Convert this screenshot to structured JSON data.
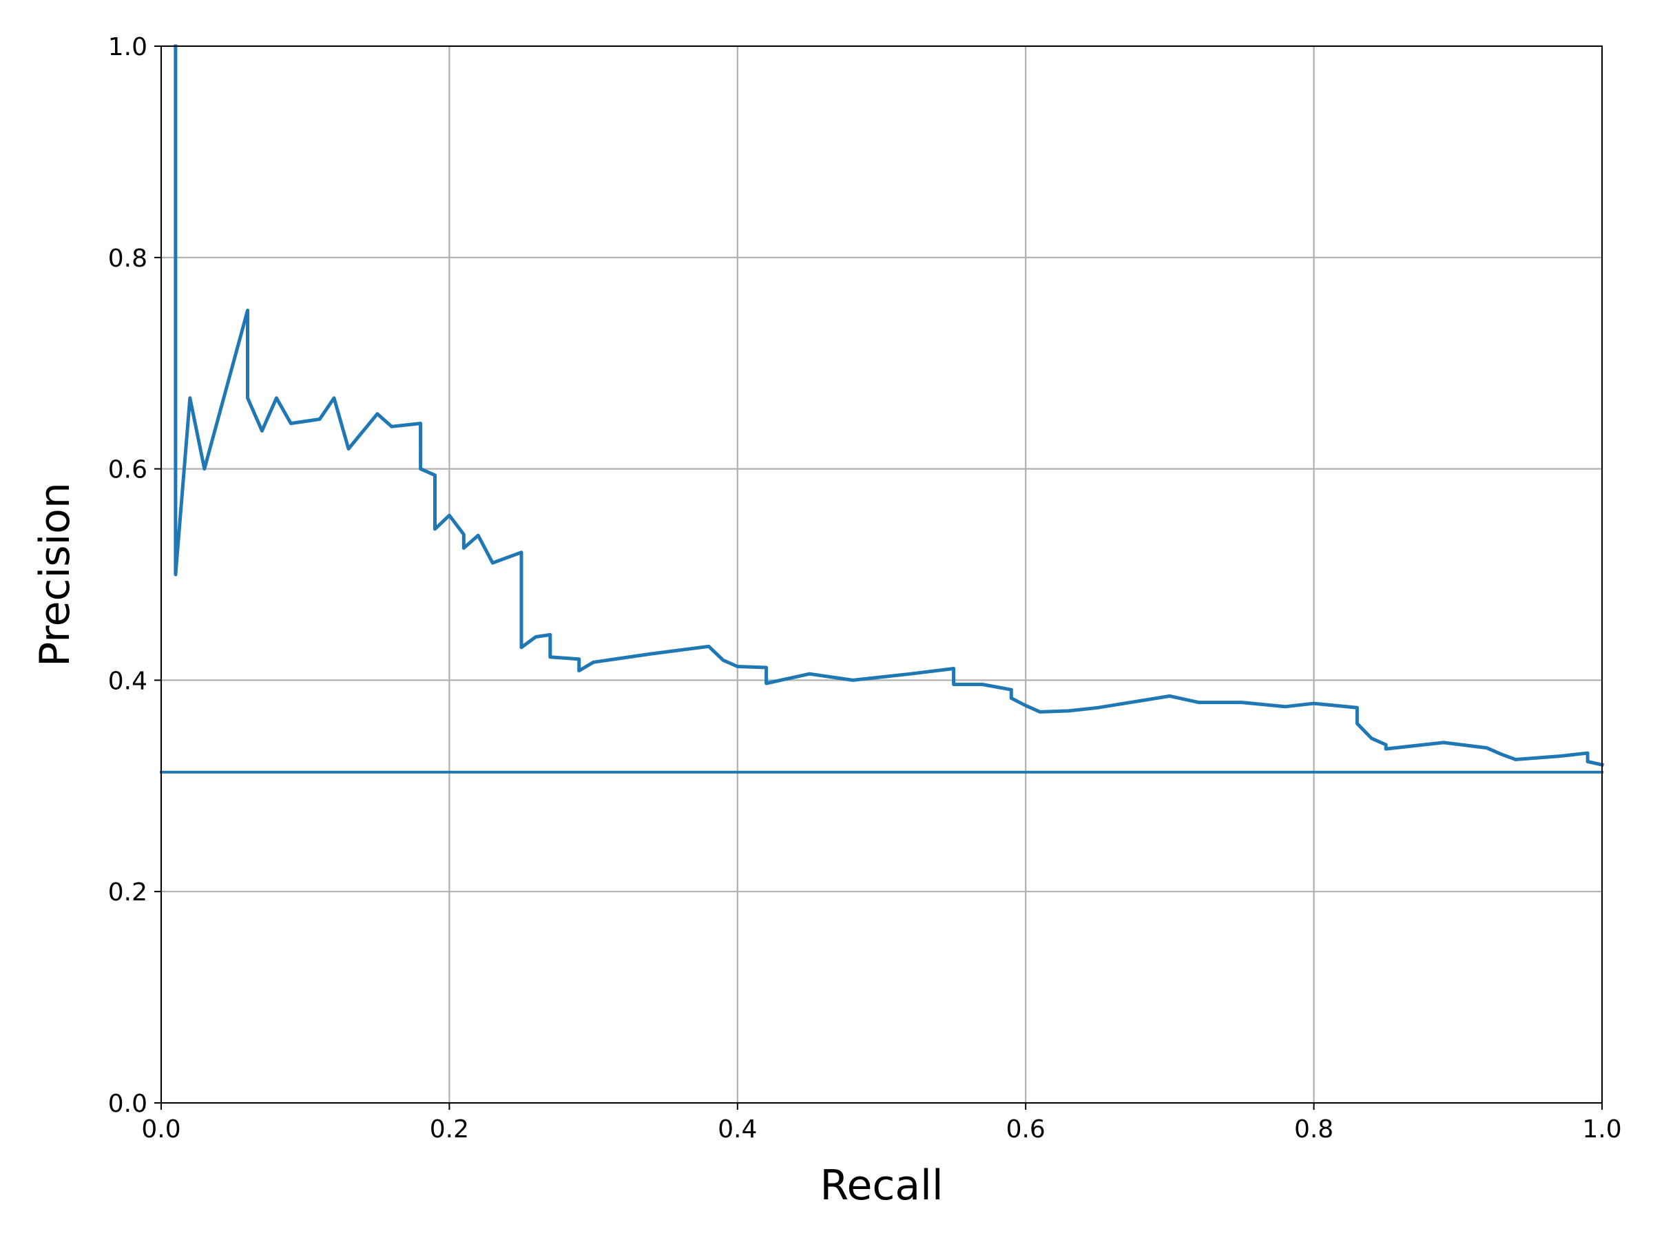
{
  "chart_data": {
    "type": "line",
    "title": "",
    "xlabel": "Recall",
    "ylabel": "Precision",
    "xlim": [
      0.0,
      1.0
    ],
    "ylim": [
      0.0,
      1.0
    ],
    "x_ticks": [
      "0.0",
      "0.2",
      "0.4",
      "0.6",
      "0.8",
      "1.0"
    ],
    "y_ticks": [
      "0.0",
      "0.2",
      "0.4",
      "0.6",
      "0.8",
      "1.0"
    ],
    "grid": true,
    "legend": "none",
    "series": [
      {
        "color": "#1f77b4",
        "x": [
          0.01,
          0.01,
          0.02,
          0.03,
          0.06,
          0.06,
          0.07,
          0.08,
          0.09,
          0.11,
          0.12,
          0.13,
          0.15,
          0.16,
          0.18,
          0.18,
          0.19,
          0.19,
          0.2,
          0.21,
          0.21,
          0.22,
          0.23,
          0.25,
          0.25,
          0.26,
          0.27,
          0.27,
          0.29,
          0.29,
          0.3,
          0.34,
          0.38,
          0.39,
          0.4,
          0.42,
          0.42,
          0.45,
          0.48,
          0.52,
          0.55,
          0.55,
          0.57,
          0.59,
          0.59,
          0.6,
          0.61,
          0.63,
          0.65,
          0.7,
          0.72,
          0.75,
          0.78,
          0.8,
          0.83,
          0.83,
          0.84,
          0.85,
          0.85,
          0.89,
          0.92,
          0.93,
          0.94,
          0.97,
          0.99,
          0.99,
          1.0
        ],
        "y": [
          1.0,
          0.5,
          0.667,
          0.6,
          0.75,
          0.667,
          0.636,
          0.667,
          0.643,
          0.647,
          0.667,
          0.619,
          0.652,
          0.64,
          0.643,
          0.6,
          0.594,
          0.543,
          0.556,
          0.538,
          0.525,
          0.537,
          0.511,
          0.521,
          0.431,
          0.441,
          0.443,
          0.422,
          0.42,
          0.409,
          0.417,
          0.425,
          0.432,
          0.419,
          0.413,
          0.412,
          0.397,
          0.406,
          0.4,
          0.406,
          0.411,
          0.396,
          0.396,
          0.391,
          0.383,
          0.376,
          0.37,
          0.371,
          0.374,
          0.385,
          0.379,
          0.379,
          0.375,
          0.378,
          0.374,
          0.359,
          0.345,
          0.339,
          0.335,
          0.341,
          0.336,
          0.33,
          0.325,
          0.328,
          0.331,
          0.323,
          0.32
        ]
      },
      {
        "color": "#1f77b4",
        "x": [
          0.0,
          1.0
        ],
        "y": [
          0.313,
          0.313
        ]
      }
    ]
  }
}
